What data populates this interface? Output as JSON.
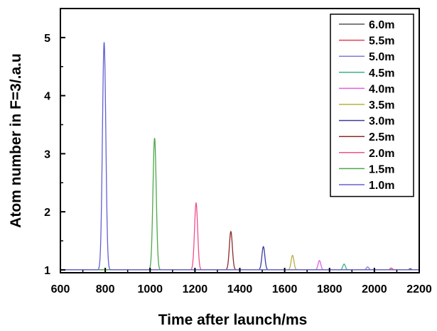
{
  "chart_data": {
    "type": "line",
    "xlabel": "Time after launch/ms",
    "ylabel": "Atom number in F=3/.a.u",
    "xlim": [
      600,
      2200
    ],
    "ylim": [
      0.95,
      5.5
    ],
    "xticks": [
      600,
      800,
      1000,
      1200,
      1400,
      1600,
      1800,
      2000,
      2200
    ],
    "yticks": [
      1,
      2,
      3,
      4,
      5
    ],
    "grid": false,
    "legend_position": "top-right",
    "baseline": 1.0,
    "series": [
      {
        "name": "6.0m",
        "color": "#555555",
        "peak_x": 2160,
        "peak_y": 1.02
      },
      {
        "name": "5.5m",
        "color": "#e0405a",
        "peak_x": 2075,
        "peak_y": 1.03
      },
      {
        "name": "5.0m",
        "color": "#7b7bd8",
        "peak_x": 1970,
        "peak_y": 1.05
      },
      {
        "name": "4.5m",
        "color": "#3fae8c",
        "peak_x": 1865,
        "peak_y": 1.1
      },
      {
        "name": "4.0m",
        "color": "#e060e0",
        "peak_x": 1755,
        "peak_y": 1.16
      },
      {
        "name": "3.5m",
        "color": "#b8b040",
        "peak_x": 1635,
        "peak_y": 1.25
      },
      {
        "name": "3.0m",
        "color": "#3c3c9c",
        "peak_x": 1505,
        "peak_y": 1.4
      },
      {
        "name": "2.5m",
        "color": "#8a2a2a",
        "peak_x": 1360,
        "peak_y": 1.66
      },
      {
        "name": "2.0m",
        "color": "#f0508a",
        "peak_x": 1205,
        "peak_y": 2.15
      },
      {
        "name": "1.5m",
        "color": "#4aa84a",
        "peak_x": 1020,
        "peak_y": 3.27
      },
      {
        "name": "1.0m",
        "color": "#6060d8",
        "peak_x": 795,
        "peak_y": 4.92
      }
    ]
  }
}
